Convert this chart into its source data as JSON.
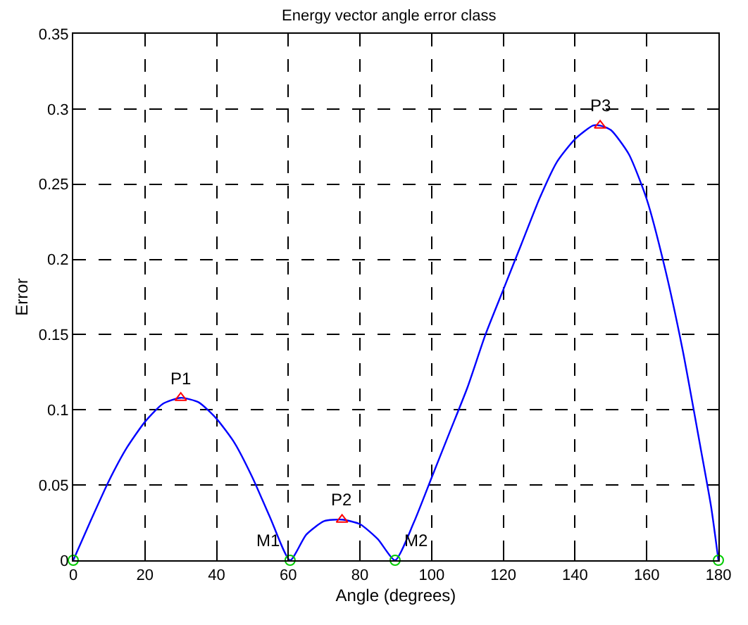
{
  "chart_data": {
    "type": "line",
    "title": "Energy vector angle error class",
    "xlabel": "Angle (degrees)",
    "ylabel": "Error",
    "xlim": [
      0,
      180
    ],
    "xticks": [
      0,
      20,
      40,
      60,
      80,
      100,
      120,
      140,
      160,
      180
    ],
    "ylim": [
      0,
      0.35
    ],
    "yticks": [
      0,
      0.05,
      0.1,
      0.15,
      0.2,
      0.25,
      0.3,
      0.35
    ],
    "grid": true,
    "series": [
      {
        "color": "#0000ff",
        "marker": "none",
        "line_style": "solid",
        "x": [
          0,
          5,
          10,
          15,
          20,
          25,
          30,
          35,
          40,
          45,
          50,
          55,
          60.5,
          65,
          70,
          75,
          80,
          85,
          89.8,
          95,
          100,
          105,
          110,
          115,
          120,
          125,
          130,
          135,
          140,
          145,
          147,
          150,
          155,
          160,
          165,
          170,
          175,
          178,
          180
        ],
        "values": [
          0,
          0.027,
          0.053,
          0.075,
          0.092,
          0.104,
          0.108,
          0.105,
          0.094,
          0.078,
          0.055,
          0.028,
          0,
          0.017,
          0.026,
          0.027,
          0.024,
          0.014,
          0,
          0.025,
          0.055,
          0.085,
          0.115,
          0.15,
          0.18,
          0.21,
          0.24,
          0.265,
          0.28,
          0.289,
          0.289,
          0.286,
          0.27,
          0.24,
          0.195,
          0.14,
          0.075,
          0.035,
          0
        ]
      },
      {
        "type": "scatter",
        "color": "#ff0000",
        "marker": "triangle",
        "x": [
          30,
          75,
          147
        ],
        "values": [
          0.108,
          0.027,
          0.289
        ]
      },
      {
        "type": "scatter",
        "color": "#00cc00",
        "marker": "circle",
        "x": [
          0,
          60.5,
          89.8,
          180
        ],
        "values": [
          0,
          0,
          0,
          0
        ]
      }
    ],
    "annotations": [
      {
        "text": "P1",
        "x": 30,
        "y": 0.108
      },
      {
        "text": "P2",
        "x": 75,
        "y": 0.027
      },
      {
        "text": "P3",
        "x": 147,
        "y": 0.289
      },
      {
        "text": "M1",
        "x": 60.5,
        "y": 0
      },
      {
        "text": "M2",
        "x": 89.8,
        "y": 0
      }
    ]
  }
}
